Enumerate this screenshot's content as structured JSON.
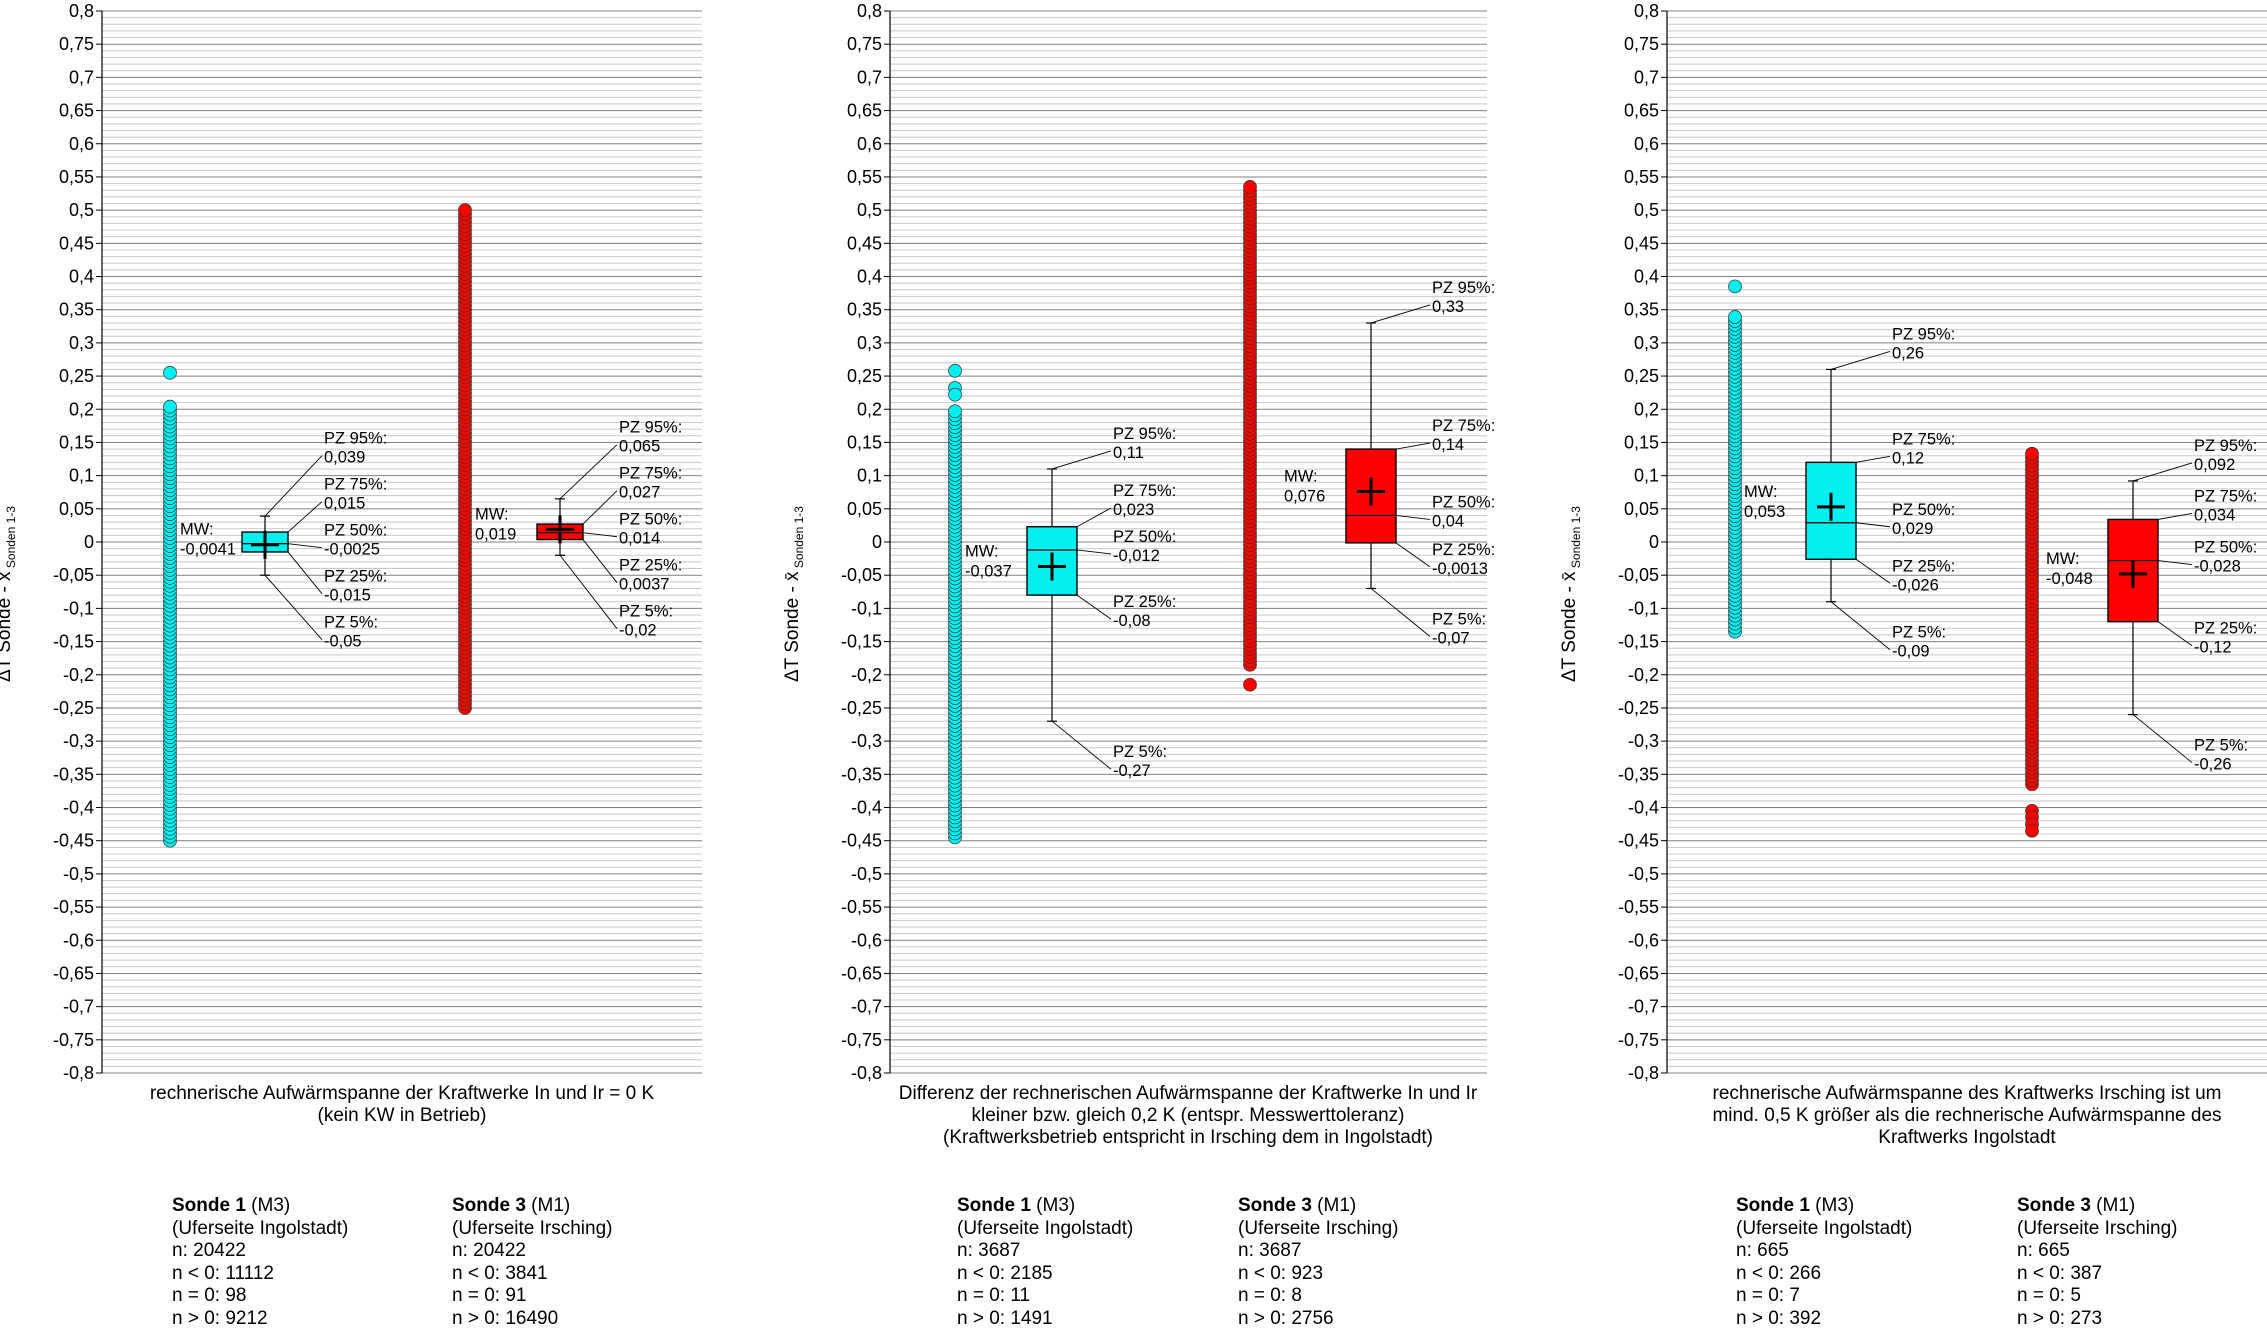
{
  "y_axis_label_main": "ΔT Sonde - x̄",
  "y_axis_label_sub": "Sonden 1-3",
  "colors": {
    "sonde1": "#00f0f0",
    "sonde3": "#ff0000",
    "grid_major": "#808080",
    "grid_minor": "#c8c8c8"
  },
  "chart_data": [
    {
      "type": "box",
      "caption": "rechnerische Aufwärmspanne der Kraftwerke In und Ir = 0 K\n(kein KW in Betrieb)",
      "ylim": [
        -0.8,
        0.8
      ],
      "yticks": [
        "0,8",
        "0,75",
        "0,7",
        "0,65",
        "0,6",
        "0,55",
        "0,5",
        "0,45",
        "0,4",
        "0,35",
        "0,3",
        "0,25",
        "0,2",
        "0,15",
        "0,1",
        "0,05",
        "0",
        "-0,05",
        "-0,1",
        "-0,15",
        "-0,2",
        "-0,25",
        "-0,3",
        "-0,35",
        "-0,4",
        "-0,45",
        "-0,5",
        "-0,55",
        "-0,6",
        "-0,65",
        "-0,7",
        "-0,75",
        "-0,8"
      ],
      "series": [
        {
          "name": "Sonde 1",
          "name_suffix": "(M3)",
          "location": "(Uferseite Ingolstadt)",
          "color": "#00f0f0",
          "points": {
            "min": -0.45,
            "max": 0.205,
            "outliers": [
              0.255
            ]
          },
          "mean": -0.0041,
          "mean_label": "MW:\n-0,0041",
          "p5": -0.05,
          "p25": -0.015,
          "p50": -0.0025,
          "p75": 0.015,
          "p95": 0.039,
          "labels": {
            "p95": "PZ 95%:\n0,039",
            "p75": "PZ 75%:\n0,015",
            "p50": "PZ 50%:\n-0,0025",
            "p25": "PZ 25%:\n-0,015",
            "p5": "PZ 5%:\n-0,05"
          },
          "stats": [
            "n: 20422",
            "n < 0: 11112",
            "n = 0: 98",
            "n > 0: 9212"
          ]
        },
        {
          "name": "Sonde 3",
          "name_suffix": "(M1)",
          "location": "(Uferseite Irsching)",
          "color": "#ff0000",
          "points": {
            "min": -0.25,
            "max": 0.5,
            "outliers": []
          },
          "mean": 0.019,
          "mean_label": "MW:\n0,019",
          "p5": -0.02,
          "p25": 0.0037,
          "p50": 0.014,
          "p75": 0.027,
          "p95": 0.065,
          "labels": {
            "p95": "PZ 95%:\n0,065",
            "p75": "PZ 75%:\n0,027",
            "p50": "PZ 50%:\n0,014",
            "p25": "PZ 25%:\n0,0037",
            "p5": "PZ 5%:\n-0,02"
          },
          "stats": [
            "n: 20422",
            "n < 0: 3841",
            "n = 0: 91",
            "n > 0: 16490"
          ]
        }
      ]
    },
    {
      "type": "box",
      "caption": "Differenz der rechnerischen Aufwärmspanne der Kraftwerke In und Ir\nkleiner bzw. gleich 0,2 K (entspr. Messwerttoleranz)\n(Kraftwerksbetrieb entspricht in Irsching dem in Ingolstadt)",
      "ylim": [
        -0.8,
        0.8
      ],
      "yticks": [
        "0,8",
        "0,75",
        "0,7",
        "0,65",
        "0,6",
        "0,55",
        "0,5",
        "0,45",
        "0,4",
        "0,35",
        "0,3",
        "0,25",
        "0,2",
        "0,15",
        "0,1",
        "0,05",
        "0",
        "-0,05",
        "-0,1",
        "-0,15",
        "-0,2",
        "-0,25",
        "-0,3",
        "-0,35",
        "-0,4",
        "-0,45",
        "-0,5",
        "-0,55",
        "-0,6",
        "-0,65",
        "-0,7",
        "-0,75",
        "-0,8"
      ],
      "series": [
        {
          "name": "Sonde 1",
          "name_suffix": "(M3)",
          "location": "(Uferseite Ingolstadt)",
          "color": "#00f0f0",
          "points": {
            "min": -0.445,
            "max": 0.2,
            "outliers": [
              0.258,
              0.232,
              0.222
            ]
          },
          "mean": -0.037,
          "mean_label": "MW:\n-0,037",
          "p5": -0.27,
          "p25": -0.08,
          "p50": -0.012,
          "p75": 0.023,
          "p95": 0.11,
          "labels": {
            "p95": "PZ 95%:\n0,11",
            "p75": "PZ 75%:\n0,023",
            "p50": "PZ 50%:\n-0,012",
            "p25": "PZ 25%:\n-0,08",
            "p5": "PZ 5%:\n-0,27"
          },
          "stats": [
            "n: 3687",
            "n < 0: 2185",
            "n = 0: 11",
            "n > 0: 1491"
          ]
        },
        {
          "name": "Sonde 3",
          "name_suffix": "(M1)",
          "location": "(Uferseite Irsching)",
          "color": "#ff0000",
          "points": {
            "min": -0.185,
            "max": 0.535,
            "outliers": [
              -0.215
            ]
          },
          "mean": 0.076,
          "mean_label": "MW:\n0,076",
          "p5": -0.07,
          "p25": -0.0013,
          "p50": 0.04,
          "p75": 0.14,
          "p95": 0.33,
          "labels": {
            "p95": "PZ 95%:\n0,33",
            "p75": "PZ 75%:\n0,14",
            "p50": "PZ 50%:\n0,04",
            "p25": "PZ 25%:\n-0,0013",
            "p5": "PZ 5%:\n-0,07"
          },
          "stats": [
            "n: 3687",
            "n < 0: 923",
            "n = 0: 8",
            "n > 0: 2756"
          ]
        }
      ]
    },
    {
      "type": "box",
      "caption": "rechnerische Aufwärmspanne des Kraftwerks Irsching ist um\nmind. 0,5 K größer als die rechnerische Aufwärmspanne des\nKraftwerks Ingolstadt",
      "ylim": [
        -0.8,
        0.8
      ],
      "yticks": [
        "0,8",
        "0,75",
        "0,7",
        "0,65",
        "0,6",
        "0,55",
        "0,5",
        "0,45",
        "0,4",
        "0,35",
        "0,3",
        "0,25",
        "0,2",
        "0,15",
        "0,1",
        "0,05",
        "0",
        "-0,05",
        "-0,1",
        "-0,15",
        "-0,2",
        "-0,25",
        "-0,3",
        "-0,35",
        "-0,4",
        "-0,45",
        "-0,5",
        "-0,55",
        "-0,6",
        "-0,65",
        "-0,7",
        "-0,75",
        "-0,8"
      ],
      "series": [
        {
          "name": "Sonde 1",
          "name_suffix": "(M3)",
          "location": "(Uferseite Ingolstadt)",
          "color": "#00f0f0",
          "points": {
            "min": -0.135,
            "max": 0.34,
            "outliers": [
              0.385
            ]
          },
          "mean": 0.053,
          "mean_label": "MW:\n0,053",
          "p5": -0.09,
          "p25": -0.026,
          "p50": 0.029,
          "p75": 0.12,
          "p95": 0.26,
          "labels": {
            "p95": "PZ 95%:\n0,26",
            "p75": "PZ 75%:\n0,12",
            "p50": "PZ 50%:\n0,029",
            "p25": "PZ 25%:\n-0,026",
            "p5": "PZ 5%:\n-0,09"
          },
          "stats": [
            "n: 665",
            "n < 0: 266",
            "n = 0: 7",
            "n > 0: 392"
          ]
        },
        {
          "name": "Sonde 3",
          "name_suffix": "(M1)",
          "location": "(Uferseite Irsching)",
          "color": "#ff0000",
          "points": {
            "min": -0.365,
            "max": 0.138,
            "outliers": [
              -0.405,
              -0.415,
              -0.425,
              -0.435
            ]
          },
          "mean": -0.048,
          "mean_label": "MW:\n-0,048",
          "p5": -0.26,
          "p25": -0.12,
          "p50": -0.028,
          "p75": 0.034,
          "p95": 0.092,
          "labels": {
            "p95": "PZ 95%:\n0,092",
            "p75": "PZ 75%:\n0,034",
            "p50": "PZ 50%:\n-0,028",
            "p25": "PZ 25%:\n-0,12",
            "p5": "PZ 5%:\n-0,26"
          },
          "stats": [
            "n: 665",
            "n < 0: 387",
            "n = 0: 5",
            "n > 0: 273"
          ]
        }
      ]
    }
  ]
}
